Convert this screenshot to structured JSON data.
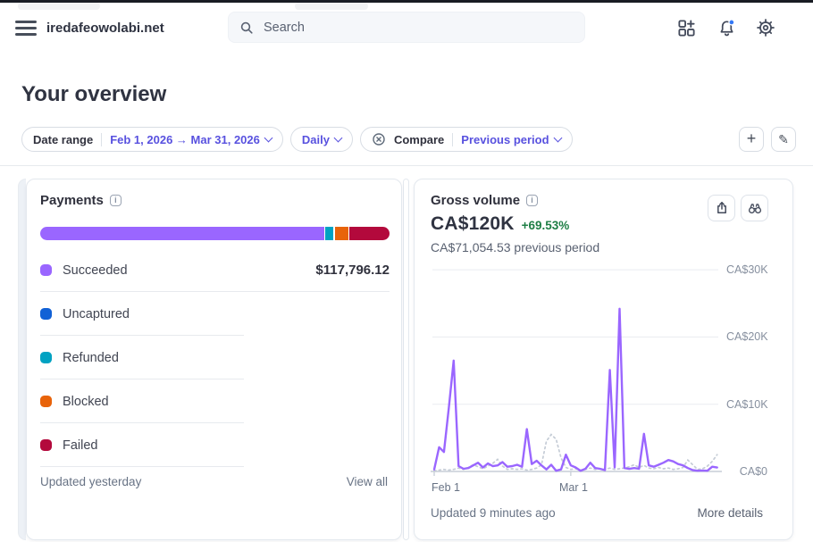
{
  "topbar": {
    "merchant": "iredafeowolabi.net",
    "search_placeholder": "Search"
  },
  "page": {
    "title": "Your overview"
  },
  "filters": {
    "date_range_label": "Date range",
    "date_range_value": "Feb 1, 2026 → Mar 31, 2026",
    "granularity": "Daily",
    "compare_label": "Compare",
    "compare_value": "Previous period"
  },
  "payments_card": {
    "title": "Payments",
    "rows": [
      {
        "label": "Succeeded",
        "value": "$117,796.12",
        "color": "#9a66ff"
      },
      {
        "label": "Uncaptured",
        "value": "",
        "color": "#1161d6"
      },
      {
        "label": "Refunded",
        "value": "",
        "color": "#00a2c2"
      },
      {
        "label": "Blocked",
        "value": "",
        "color": "#e8630a"
      },
      {
        "label": "Failed",
        "value": "",
        "color": "#b3093c"
      }
    ],
    "bar_segments": [
      {
        "name": "succeeded",
        "color": "#9a66ff",
        "percent": 81.3
      },
      {
        "name": "refunded",
        "color": "#00a2c2",
        "percent": 2.3
      },
      {
        "name": "blocked",
        "color": "#e8630a",
        "percent": 3.8
      },
      {
        "name": "failed",
        "color": "#b3093c",
        "percent": 12.0
      }
    ],
    "updated": "Updated yesterday",
    "view_all": "View all"
  },
  "gross_volume_card": {
    "title": "Gross volume",
    "amount": "CA$120K",
    "delta": "+69.53%",
    "previous": "CA$71,054.53 previous period",
    "updated": "Updated 9 minutes ago",
    "more_details": "More details",
    "chart_data": {
      "type": "line",
      "title": "Gross volume",
      "x_axis": {
        "start": "Feb 1, 2026",
        "end": "Mar 31, 2026",
        "interval": "daily",
        "tick_labels": [
          "Feb 1",
          "Mar 1"
        ]
      },
      "y_axis": {
        "currency": "CAD",
        "range": [
          0,
          32000
        ],
        "tick_labels": [
          "CA$0",
          "CA$10K",
          "CA$20K",
          "CA$30K"
        ]
      },
      "grid": true,
      "legend": false,
      "series": [
        {
          "name": "Current period",
          "style": "solid",
          "color": "#9a66ff",
          "values": [
            300,
            3600,
            2900,
            9500,
            16500,
            800,
            400,
            500,
            900,
            1300,
            600,
            1200,
            800,
            900,
            1400,
            700,
            800,
            1000,
            700,
            6300,
            1100,
            1600,
            900,
            300,
            1000,
            100,
            300,
            2500,
            900,
            600,
            100,
            400,
            1300,
            500,
            400,
            200,
            15100,
            600,
            24200,
            500,
            400,
            500,
            400,
            5600,
            900,
            700,
            1000,
            1300,
            1700,
            1500,
            1100,
            900,
            500,
            200,
            100,
            150,
            100,
            700,
            600
          ]
        },
        {
          "name": "Previous period",
          "style": "dotted",
          "color": "#c5ccd6",
          "values": [
            100,
            200,
            300,
            200,
            300,
            500,
            300,
            600,
            1000,
            700,
            400,
            800,
            1200,
            1800,
            800,
            300,
            400,
            300,
            400,
            200,
            300,
            500,
            1000,
            4500,
            5500,
            4800,
            2000,
            600,
            300,
            400,
            200,
            300,
            500,
            300,
            400,
            300,
            500,
            300,
            400,
            500,
            700,
            1000,
            600,
            900,
            500,
            400,
            600,
            400,
            500,
            300,
            400,
            600,
            1700,
            1000,
            300,
            400,
            800,
            1500,
            2500
          ]
        }
      ]
    }
  },
  "colors": {
    "accent_purple": "#5851df",
    "chart_purple": "#9a66ff",
    "success_green": "#1e7e45",
    "top_edge": "#191c24",
    "notification_dot": "#3478f6"
  }
}
